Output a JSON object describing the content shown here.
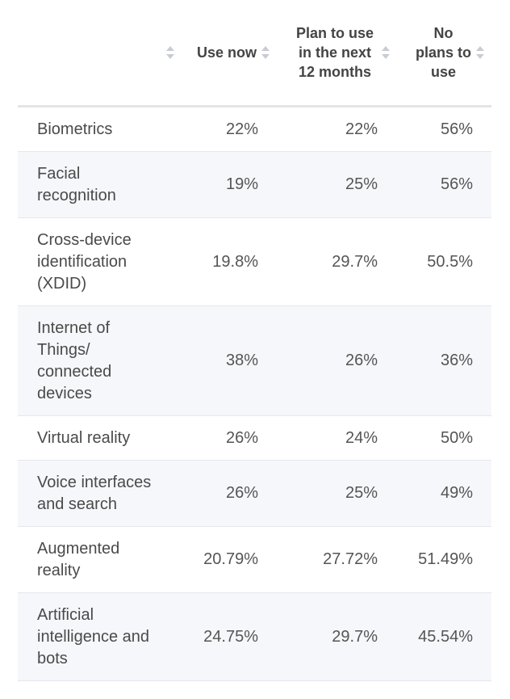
{
  "table": {
    "columns": [
      "Use now",
      "Plan to use in the next 12 months",
      "No plans to use"
    ],
    "rows": [
      [
        "Biometrics",
        "22%",
        "22%",
        "56%"
      ],
      [
        "Facial recognition",
        "19%",
        "25%",
        "56%"
      ],
      [
        "Cross-device identification (XDID)",
        "19.8%",
        "29.7%",
        "50.5%"
      ],
      [
        "Internet of Things/ connected devices",
        "38%",
        "26%",
        "36%"
      ],
      [
        "Virtual reality",
        "26%",
        "24%",
        "50%"
      ],
      [
        "Voice interfaces and search",
        "26%",
        "25%",
        "49%"
      ],
      [
        "Augmented reality",
        "20.79%",
        "27.72%",
        "51.49%"
      ],
      [
        "Artificial intelligence and bots",
        "24.75%",
        "29.7%",
        "45.54%"
      ]
    ]
  }
}
